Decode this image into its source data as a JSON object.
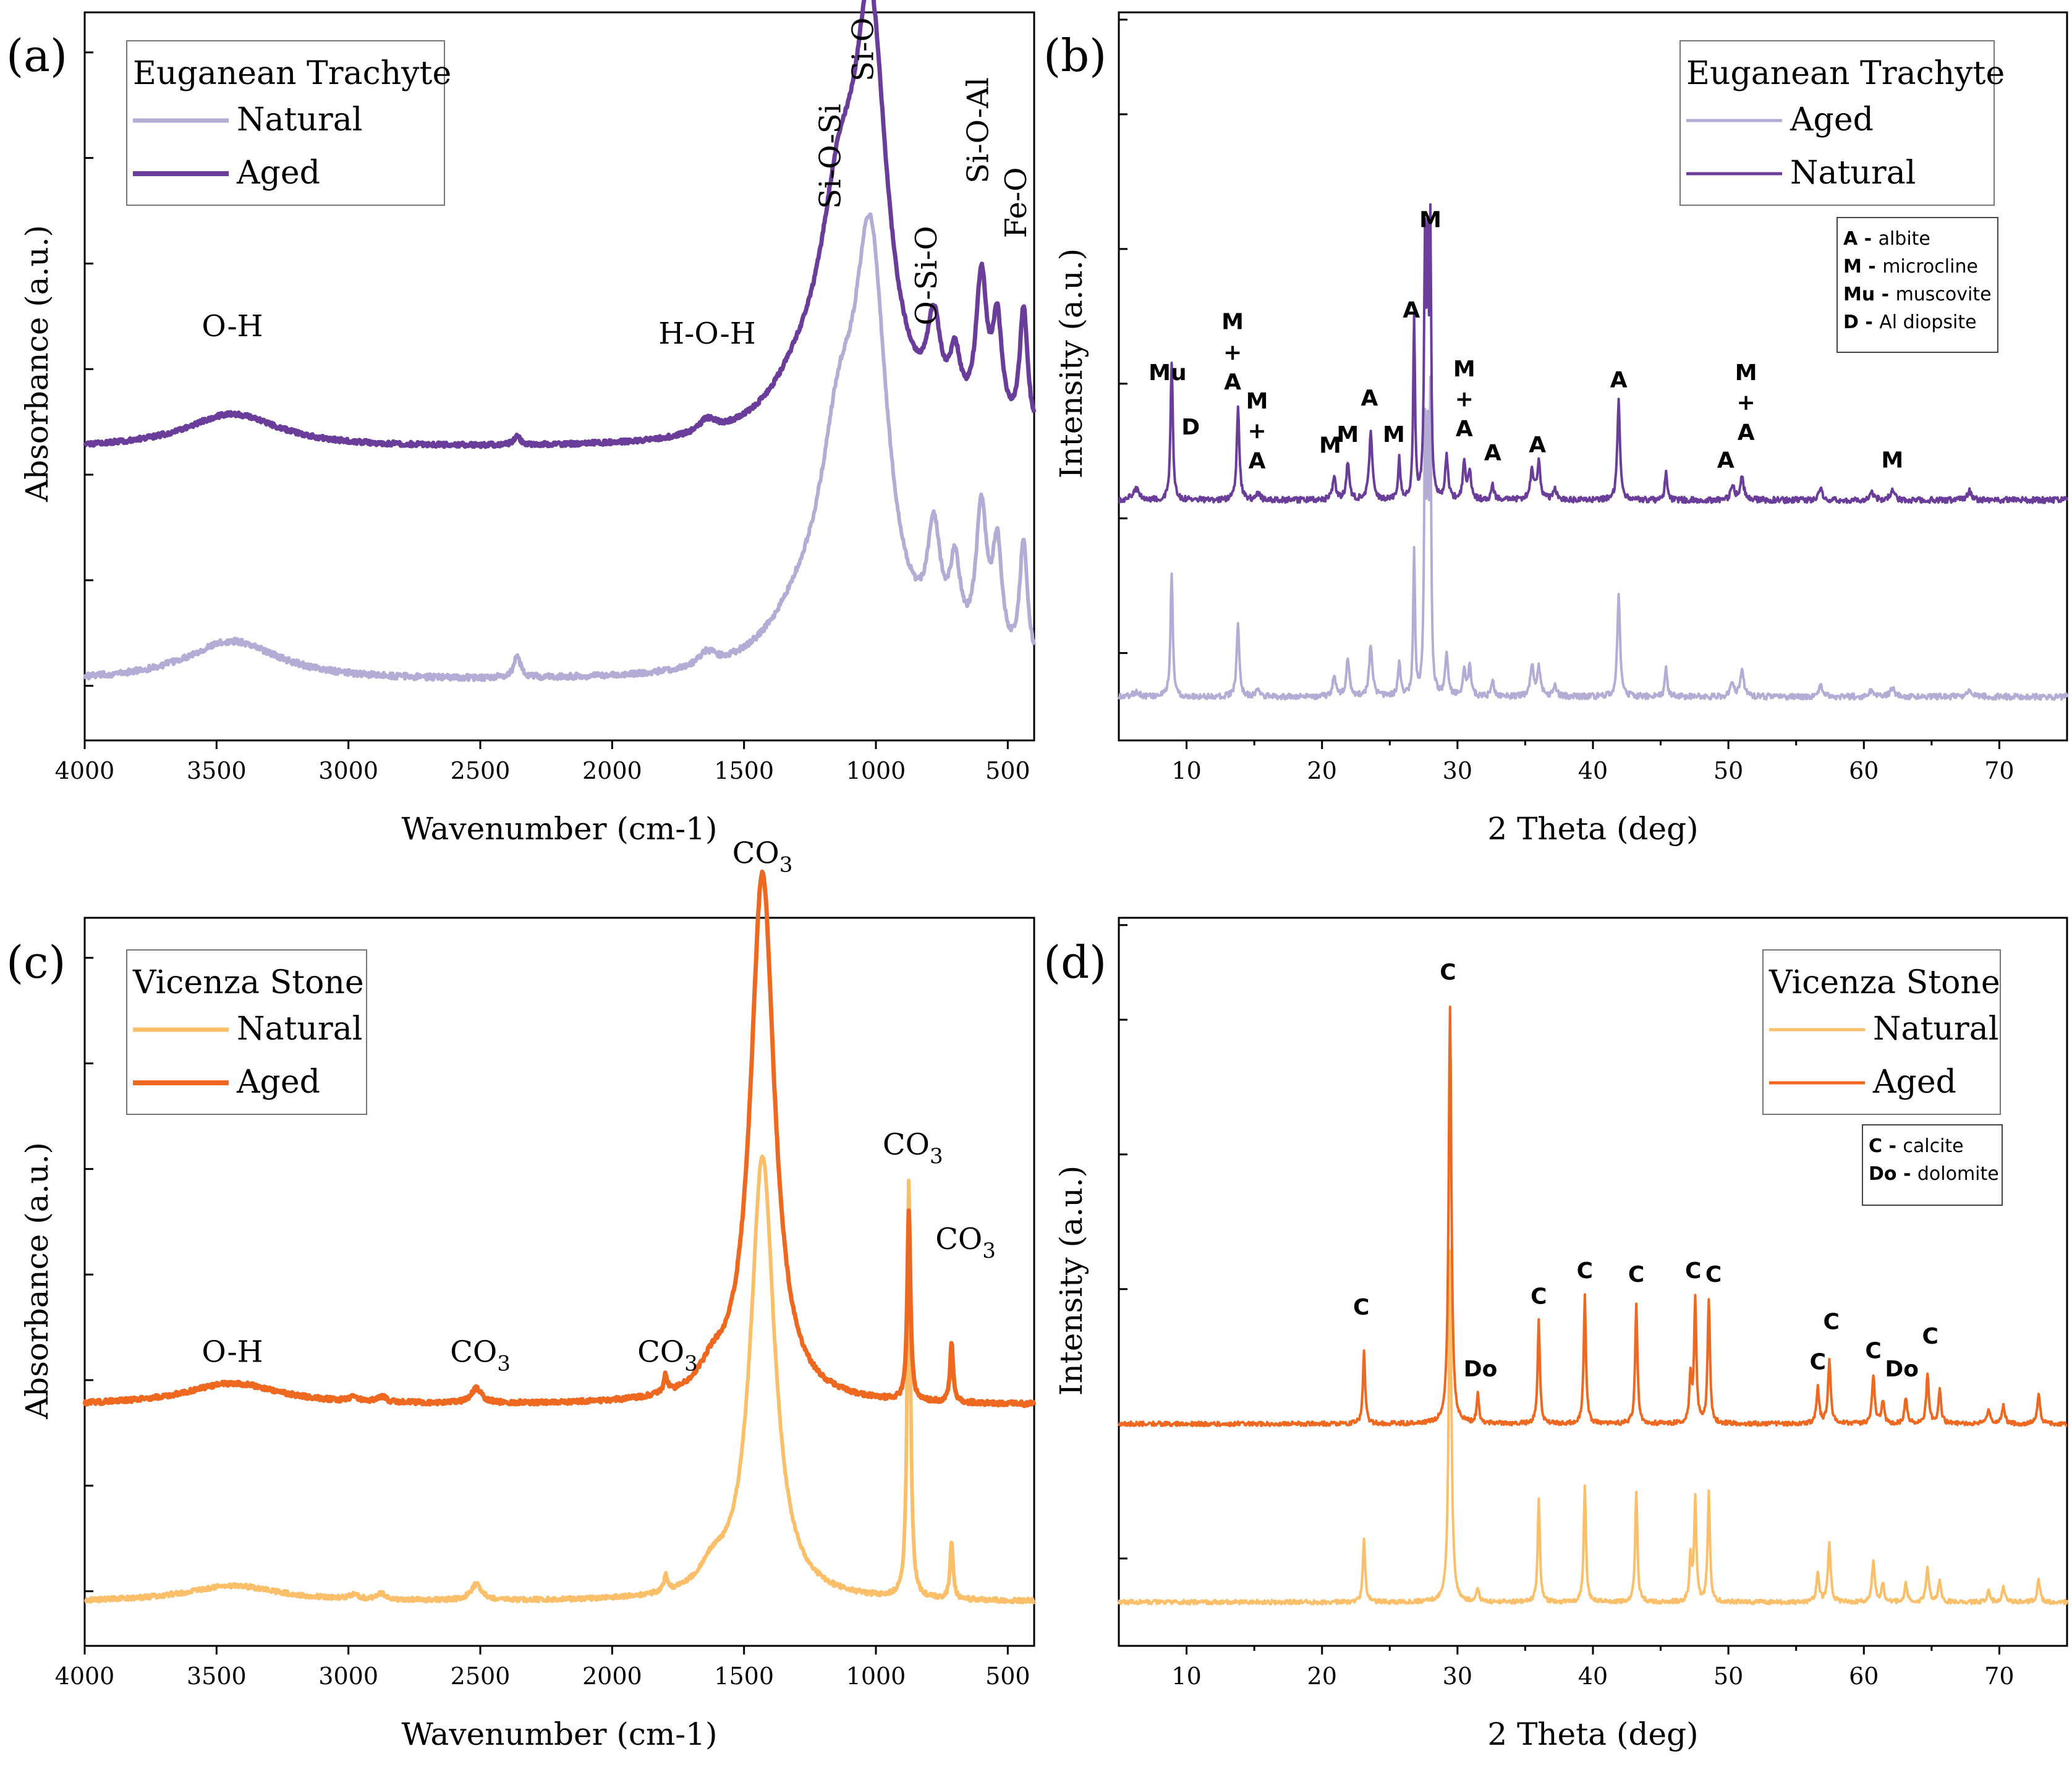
{
  "chart_data": [
    {
      "type": "line",
      "panel_label": "(a)",
      "xlabel": "Wavenumber (cm-1)",
      "ylabel": "Absorbance (a.u.)",
      "xlim": [
        4000,
        400
      ],
      "x_ticks": [
        4000,
        3500,
        3000,
        2500,
        2000,
        1500,
        1000,
        500
      ],
      "legend_title": "Euganean Trachyte",
      "series": [
        {
          "name": "Natural",
          "color": "#b5acd6",
          "width": 6,
          "baseline": 0.08,
          "noise": 0.004,
          "peaks": [
            [
              3440,
              0.055,
              220
            ],
            [
              2360,
              0.03,
              15
            ],
            [
              1640,
              0.018,
              40
            ],
            [
              1140,
              0.25,
              90
            ],
            [
              1020,
              0.53,
              75
            ],
            [
              1280,
              0.06,
              150
            ],
            [
              780,
              0.15,
              30
            ],
            [
              700,
              0.11,
              25
            ],
            [
              600,
              0.2,
              25
            ],
            [
              540,
              0.15,
              22
            ],
            [
              440,
              0.17,
              18
            ]
          ]
        },
        {
          "name": "Aged",
          "color": "#6a3d9a",
          "width": 7,
          "baseline": 0.4,
          "noise": 0.003,
          "peaks": [
            [
              3440,
              0.047,
              220
            ],
            [
              2360,
              0.012,
              15
            ],
            [
              1640,
              0.018,
              40
            ],
            [
              1140,
              0.25,
              90
            ],
            [
              1020,
              0.53,
              75
            ],
            [
              1280,
              0.06,
              150
            ],
            [
              780,
              0.12,
              30
            ],
            [
              700,
              0.08,
              25
            ],
            [
              600,
              0.2,
              25
            ],
            [
              540,
              0.14,
              22
            ],
            [
              440,
              0.17,
              18
            ]
          ]
        }
      ],
      "annotations": [
        {
          "text": "O-H",
          "x": 3440,
          "y": 0.555,
          "rotate": false
        },
        {
          "text": "H-O-H",
          "x": 1640,
          "y": 0.545,
          "rotate": false
        },
        {
          "text": "Si-O-Si",
          "x": 1135,
          "y": 0.73,
          "rotate": true
        },
        {
          "text": "Si-O",
          "x": 1010,
          "y": 0.905,
          "rotate": true
        },
        {
          "text": "O-Si-O",
          "x": 770,
          "y": 0.57,
          "rotate": true
        },
        {
          "text": "Si-O-Al",
          "x": 575,
          "y": 0.765,
          "rotate": true
        },
        {
          "text": "Fe-O",
          "x": 430,
          "y": 0.69,
          "rotate": true
        }
      ]
    },
    {
      "type": "line",
      "panel_label": "(b)",
      "xlabel": "2 Theta (deg)",
      "ylabel": "Intensity (a.u.)",
      "xlim": [
        5,
        75
      ],
      "x_ticks": [
        10,
        20,
        30,
        40,
        50,
        60,
        70
      ],
      "legend_title": "Euganean Trachyte",
      "key": [
        {
          "abbr": "A",
          "name": "albite"
        },
        {
          "abbr": "M",
          "name": "microcline"
        },
        {
          "abbr": "Mu",
          "name": "muscovite"
        },
        {
          "abbr": "D",
          "name": "Al diopsite"
        }
      ],
      "series": [
        {
          "name": "Aged",
          "color": "#b5acd6",
          "width": 4,
          "baseline": 0.06,
          "noise": 0.004,
          "peaks": [
            [
              6.3,
              0.006,
              0.3
            ],
            [
              8.9,
              0.17,
              0.1
            ],
            [
              13.8,
              0.1,
              0.12
            ],
            [
              15.3,
              0.01,
              0.15
            ],
            [
              20.9,
              0.028,
              0.14
            ],
            [
              21.9,
              0.05,
              0.14
            ],
            [
              23.6,
              0.07,
              0.14
            ],
            [
              25.7,
              0.05,
              0.1
            ],
            [
              26.8,
              0.2,
              0.08
            ],
            [
              27.6,
              0.34,
              0.08
            ],
            [
              27.8,
              0.3,
              0.08
            ],
            [
              28.0,
              0.38,
              0.07
            ],
            [
              29.2,
              0.06,
              0.12
            ],
            [
              30.5,
              0.04,
              0.12
            ],
            [
              30.9,
              0.04,
              0.12
            ],
            [
              32.6,
              0.02,
              0.12
            ],
            [
              35.5,
              0.04,
              0.15
            ],
            [
              36.0,
              0.04,
              0.15
            ],
            [
              37.2,
              0.015,
              0.15
            ],
            [
              41.9,
              0.14,
              0.12
            ],
            [
              45.4,
              0.04,
              0.1
            ],
            [
              50.3,
              0.02,
              0.15
            ],
            [
              51.0,
              0.038,
              0.15
            ],
            [
              56.8,
              0.015,
              0.15
            ],
            [
              60.6,
              0.01,
              0.2
            ],
            [
              62.1,
              0.012,
              0.2
            ],
            [
              67.8,
              0.01,
              0.2
            ]
          ]
        },
        {
          "name": "Natural",
          "color": "#6a3d9a",
          "width": 4,
          "baseline": 0.33,
          "noise": 0.004,
          "peaks": [
            [
              6.3,
              0.015,
              0.3
            ],
            [
              8.9,
              0.19,
              0.1
            ],
            [
              13.8,
              0.125,
              0.12
            ],
            [
              15.3,
              0.01,
              0.15
            ],
            [
              20.9,
              0.03,
              0.14
            ],
            [
              21.9,
              0.05,
              0.14
            ],
            [
              23.6,
              0.09,
              0.14
            ],
            [
              25.7,
              0.055,
              0.1
            ],
            [
              26.8,
              0.25,
              0.08
            ],
            [
              27.6,
              0.33,
              0.08
            ],
            [
              27.8,
              0.3,
              0.08
            ],
            [
              28.0,
              0.35,
              0.07
            ],
            [
              29.2,
              0.06,
              0.12
            ],
            [
              30.5,
              0.05,
              0.12
            ],
            [
              30.9,
              0.04,
              0.12
            ],
            [
              32.6,
              0.02,
              0.12
            ],
            [
              35.5,
              0.04,
              0.15
            ],
            [
              36.0,
              0.05,
              0.15
            ],
            [
              37.2,
              0.015,
              0.15
            ],
            [
              41.9,
              0.135,
              0.12
            ],
            [
              45.4,
              0.04,
              0.1
            ],
            [
              50.3,
              0.02,
              0.15
            ],
            [
              51.0,
              0.035,
              0.15
            ],
            [
              56.8,
              0.015,
              0.15
            ],
            [
              60.6,
              0.01,
              0.2
            ],
            [
              62.1,
              0.012,
              0.2
            ],
            [
              67.8,
              0.012,
              0.2
            ]
          ]
        }
      ],
      "annotations": [
        {
          "text": "Mu",
          "x": 8.6,
          "y": 0.495
        },
        {
          "text": "D",
          "x": 10.3,
          "y": 0.42
        },
        {
          "text": "M",
          "x": 13.4,
          "y": 0.565
        },
        {
          "text": "+",
          "x": 13.4,
          "y": 0.523
        },
        {
          "text": "A",
          "x": 13.4,
          "y": 0.482
        },
        {
          "text": "M",
          "x": 15.2,
          "y": 0.456
        },
        {
          "text": "+",
          "x": 15.2,
          "y": 0.415
        },
        {
          "text": "A",
          "x": 15.2,
          "y": 0.374
        },
        {
          "text": "M",
          "x": 20.6,
          "y": 0.395
        },
        {
          "text": "M",
          "x": 21.9,
          "y": 0.41
        },
        {
          "text": "A",
          "x": 23.5,
          "y": 0.46
        },
        {
          "text": "M",
          "x": 25.3,
          "y": 0.41
        },
        {
          "text": "A",
          "x": 26.6,
          "y": 0.581
        },
        {
          "text": "M",
          "x": 28.0,
          "y": 0.705
        },
        {
          "text": "M",
          "x": 30.5,
          "y": 0.5
        },
        {
          "text": "+",
          "x": 30.5,
          "y": 0.459
        },
        {
          "text": "A",
          "x": 30.5,
          "y": 0.418
        },
        {
          "text": "A",
          "x": 32.6,
          "y": 0.385
        },
        {
          "text": "A",
          "x": 35.9,
          "y": 0.396
        },
        {
          "text": "A",
          "x": 41.9,
          "y": 0.485
        },
        {
          "text": "A",
          "x": 49.8,
          "y": 0.375
        },
        {
          "text": "M",
          "x": 51.3,
          "y": 0.495
        },
        {
          "text": "+",
          "x": 51.3,
          "y": 0.454
        },
        {
          "text": "A",
          "x": 51.3,
          "y": 0.413
        },
        {
          "text": "M",
          "x": 62.1,
          "y": 0.375
        }
      ]
    },
    {
      "type": "line",
      "panel_label": "(c)",
      "xlabel": "Wavenumber (cm-1)",
      "ylabel": "Absorbance (a.u.)",
      "xlim": [
        4000,
        400
      ],
      "x_ticks": [
        4000,
        3500,
        3000,
        2500,
        2000,
        1500,
        1000,
        500
      ],
      "legend_title": "Vicenza Stone",
      "series": [
        {
          "name": "Natural",
          "color": "#fbbf6a",
          "width": 6,
          "baseline": 0.06,
          "noise": 0.003,
          "peaks": [
            [
              3440,
              0.022,
              220
            ],
            [
              2980,
              0.006,
              20
            ],
            [
              2875,
              0.008,
              20
            ],
            [
              2515,
              0.022,
              25
            ],
            [
              1797,
              0.022,
              8
            ],
            [
              1620,
              0.03,
              60
            ],
            [
              1430,
              0.61,
              55
            ],
            [
              875,
              0.58,
              7
            ],
            [
              713,
              0.08,
              7
            ]
          ]
        },
        {
          "name": "Aged",
          "color": "#ee6820",
          "width": 7,
          "baseline": 0.33,
          "noise": 0.003,
          "peaks": [
            [
              3440,
              0.03,
              220
            ],
            [
              2980,
              0.006,
              20
            ],
            [
              2875,
              0.008,
              20
            ],
            [
              2515,
              0.02,
              25
            ],
            [
              1797,
              0.025,
              8
            ],
            [
              1620,
              0.03,
              60
            ],
            [
              1430,
              0.73,
              55
            ],
            [
              875,
              0.26,
              7
            ],
            [
              713,
              0.08,
              7
            ]
          ]
        }
      ],
      "annotations": [
        {
          "text": "O-H",
          "x": 3440,
          "y": 0.39,
          "sub": ""
        },
        {
          "text": "CO",
          "x": 2500,
          "y": 0.39,
          "sub": "3"
        },
        {
          "text": "CO",
          "x": 1790,
          "y": 0.39,
          "sub": "3"
        },
        {
          "text": "CO",
          "x": 1430,
          "y": 1.075,
          "sub": "3"
        },
        {
          "text": "CO",
          "x": 860,
          "y": 0.675,
          "sub": "3"
        },
        {
          "text": "CO",
          "x": 660,
          "y": 0.545,
          "sub": "3"
        }
      ]
    },
    {
      "type": "line",
      "panel_label": "(d)",
      "xlabel": "2 Theta (deg)",
      "ylabel": "Intensity (a.u.)",
      "xlim": [
        5,
        75
      ],
      "x_ticks": [
        10,
        20,
        30,
        40,
        50,
        60,
        70
      ],
      "legend_title": "Vicenza Stone",
      "key": [
        {
          "abbr": "C",
          "name": "calcite"
        },
        {
          "abbr": "Do",
          "name": "dolomite"
        }
      ],
      "series": [
        {
          "name": "Natural",
          "color": "#fbbf6a",
          "width": 4,
          "baseline": 0.06,
          "noise": 0.003,
          "peaks": [
            [
              23.1,
              0.09,
              0.1
            ],
            [
              29.45,
              0.48,
              0.12
            ],
            [
              31.5,
              0.02,
              0.1
            ],
            [
              36.0,
              0.14,
              0.1
            ],
            [
              39.4,
              0.16,
              0.1
            ],
            [
              43.2,
              0.15,
              0.1
            ],
            [
              47.2,
              0.06,
              0.1
            ],
            [
              47.55,
              0.14,
              0.1
            ],
            [
              48.55,
              0.15,
              0.1
            ],
            [
              56.6,
              0.04,
              0.12
            ],
            [
              57.45,
              0.08,
              0.12
            ],
            [
              60.7,
              0.055,
              0.12
            ],
            [
              61.4,
              0.025,
              0.12
            ],
            [
              63.1,
              0.025,
              0.12
            ],
            [
              64.7,
              0.045,
              0.12
            ],
            [
              65.6,
              0.03,
              0.12
            ],
            [
              69.2,
              0.015,
              0.12
            ],
            [
              70.3,
              0.02,
              0.12
            ],
            [
              72.9,
              0.03,
              0.12
            ]
          ]
        },
        {
          "name": "Aged",
          "color": "#ee6820",
          "width": 4,
          "baseline": 0.305,
          "noise": 0.003,
          "peaks": [
            [
              23.1,
              0.1,
              0.1
            ],
            [
              29.45,
              0.57,
              0.12
            ],
            [
              31.5,
              0.04,
              0.1
            ],
            [
              36.0,
              0.14,
              0.1
            ],
            [
              39.4,
              0.175,
              0.1
            ],
            [
              43.2,
              0.165,
              0.1
            ],
            [
              47.2,
              0.06,
              0.1
            ],
            [
              47.55,
              0.17,
              0.1
            ],
            [
              48.55,
              0.17,
              0.1
            ],
            [
              56.6,
              0.05,
              0.12
            ],
            [
              57.45,
              0.085,
              0.12
            ],
            [
              60.7,
              0.065,
              0.12
            ],
            [
              61.4,
              0.03,
              0.12
            ],
            [
              63.1,
              0.035,
              0.12
            ],
            [
              64.7,
              0.065,
              0.12
            ],
            [
              65.6,
              0.045,
              0.12
            ],
            [
              69.2,
              0.02,
              0.12
            ],
            [
              70.3,
              0.025,
              0.12
            ],
            [
              72.9,
              0.04,
              0.12
            ]
          ]
        }
      ],
      "annotations": [
        {
          "text": "C",
          "x": 22.9,
          "y": 0.455
        },
        {
          "text": "C",
          "x": 29.3,
          "y": 0.915
        },
        {
          "text": "Do",
          "x": 31.7,
          "y": 0.37
        },
        {
          "text": "C",
          "x": 36.0,
          "y": 0.47
        },
        {
          "text": "C",
          "x": 39.4,
          "y": 0.505
        },
        {
          "text": "C",
          "x": 43.2,
          "y": 0.5
        },
        {
          "text": "C",
          "x": 47.4,
          "y": 0.505
        },
        {
          "text": "C",
          "x": 48.9,
          "y": 0.5
        },
        {
          "text": "C",
          "x": 56.6,
          "y": 0.38
        },
        {
          "text": "C",
          "x": 57.6,
          "y": 0.435
        },
        {
          "text": "C",
          "x": 60.7,
          "y": 0.395
        },
        {
          "text": "Do",
          "x": 62.8,
          "y": 0.37
        },
        {
          "text": "C",
          "x": 64.9,
          "y": 0.415
        }
      ]
    }
  ]
}
